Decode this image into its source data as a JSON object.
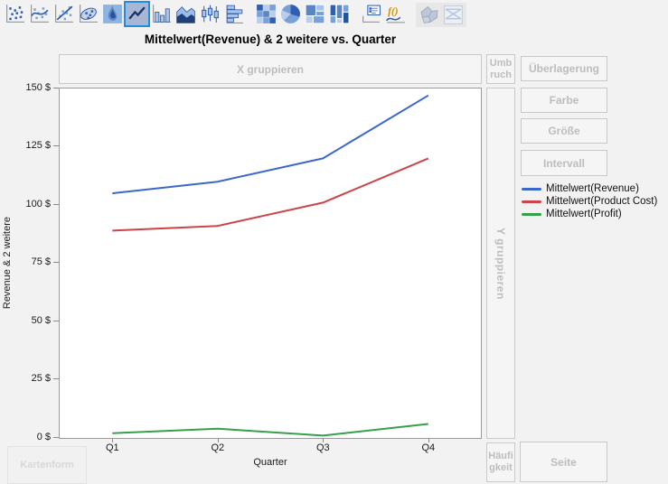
{
  "title": "Mittelwert(Revenue) & 2 weitere vs. Quarter",
  "toolbar": {
    "groups": [
      [
        {
          "id": "points",
          "name": "points-icon"
        },
        {
          "id": "smoother",
          "name": "smoother-icon"
        },
        {
          "id": "fitline",
          "name": "line-of-fit-icon"
        },
        {
          "id": "ellipse",
          "name": "ellipse-icon"
        },
        {
          "id": "contour",
          "name": "contour-icon"
        },
        {
          "id": "line",
          "name": "line-chart-icon",
          "selected": true
        },
        {
          "id": "bar",
          "name": "bar-chart-icon"
        },
        {
          "id": "area",
          "name": "area-chart-icon"
        },
        {
          "id": "box",
          "name": "box-plot-icon"
        },
        {
          "id": "histogram",
          "name": "histogram-icon"
        }
      ],
      [
        {
          "id": "heatmap",
          "name": "heatmap-icon"
        },
        {
          "id": "pie",
          "name": "pie-chart-icon"
        },
        {
          "id": "treemap",
          "name": "treemap-icon"
        },
        {
          "id": "mosaic",
          "name": "mosaic-plot-icon"
        }
      ],
      [
        {
          "id": "caption",
          "name": "caption-box-icon"
        },
        {
          "id": "formula",
          "name": "formula-icon"
        }
      ],
      [
        {
          "id": "mapshape",
          "name": "map-shapes-icon",
          "disabled": true
        },
        {
          "id": "parallel",
          "name": "parallel-plot-icon",
          "disabled": true
        }
      ]
    ]
  },
  "zones": {
    "x_group": "X gruppieren",
    "wrap": "Umbruch",
    "overlay": "Überlagerung",
    "color": "Farbe",
    "size": "Größe",
    "interval": "Intervall",
    "y_group": "Y gruppieren",
    "frequency": "Häufigkeit",
    "page": "Seite",
    "map_shape": "Kartenform"
  },
  "chart_data": {
    "type": "line",
    "title": "Mittelwert(Revenue) & 2 weitere vs. Quarter",
    "categories": [
      "Q1",
      "Q2",
      "Q3",
      "Q4"
    ],
    "series": [
      {
        "name": "Mittelwert(Revenue)",
        "color": "#3b66cc",
        "values": [
          105,
          110,
          120,
          147
        ]
      },
      {
        "name": "Mittelwert(Product Cost)",
        "color": "#cd4349",
        "values": [
          89,
          91,
          101,
          120
        ]
      },
      {
        "name": "Mittelwert(Profit)",
        "color": "#35a048",
        "values": [
          2,
          4,
          1,
          6
        ]
      }
    ],
    "xlabel": "Quarter",
    "ylabel": "Revenue & 2 weitere",
    "ylim": [
      0,
      150
    ],
    "yticks": [
      0,
      25,
      50,
      75,
      100,
      125,
      150
    ],
    "ytick_format": "{v} $",
    "grid": false,
    "legend_position": "right"
  }
}
